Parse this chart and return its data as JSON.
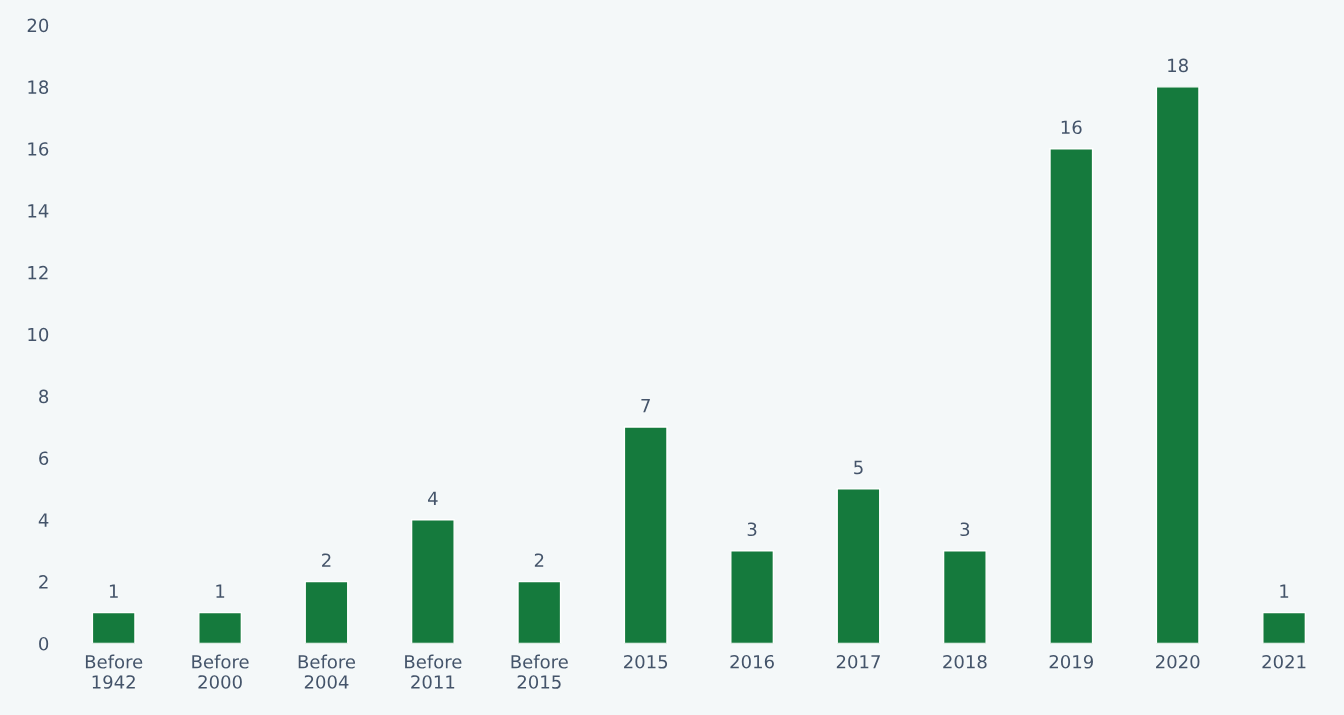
{
  "chart_data": {
    "type": "bar",
    "categories": [
      "Before 1942",
      "Before 2000",
      "Before 2004",
      "Before 2011",
      "Before 2015",
      "2015",
      "2016",
      "2017",
      "2018",
      "2019",
      "2020",
      "2021"
    ],
    "values": [
      1,
      1,
      2,
      4,
      2,
      7,
      3,
      5,
      3,
      16,
      18,
      1
    ],
    "color": "#157a3d",
    "ylim": [
      0,
      20
    ],
    "yticks": [
      0,
      2,
      4,
      6,
      8,
      10,
      12,
      14,
      16,
      18,
      20
    ],
    "grid": false,
    "legend": false,
    "data_labels": true
  }
}
